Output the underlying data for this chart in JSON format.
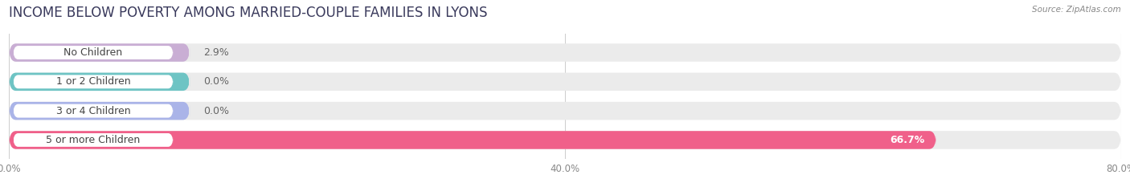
{
  "title": "INCOME BELOW POVERTY AMONG MARRIED-COUPLE FAMILIES IN LYONS",
  "source": "Source: ZipAtlas.com",
  "categories": [
    "No Children",
    "1 or 2 Children",
    "3 or 4 Children",
    "5 or more Children"
  ],
  "values": [
    2.9,
    0.0,
    0.0,
    66.7
  ],
  "bar_colors": [
    "#c9aed4",
    "#6ec4c4",
    "#aab4e8",
    "#f0608a"
  ],
  "xlim": [
    0,
    80
  ],
  "xticks": [
    0.0,
    40.0,
    80.0
  ],
  "xtick_labels": [
    "0.0%",
    "40.0%",
    "80.0%"
  ],
  "background_color": "#ffffff",
  "bar_bg_color": "#ebebeb",
  "title_fontsize": 12,
  "label_fontsize": 9,
  "value_fontsize": 9,
  "bar_height": 0.62,
  "label_color": "#444444",
  "value_color_inside": "#ffffff",
  "value_color_outside": "#666666",
  "grid_color": "#d0d0d0",
  "source_color": "#888888"
}
